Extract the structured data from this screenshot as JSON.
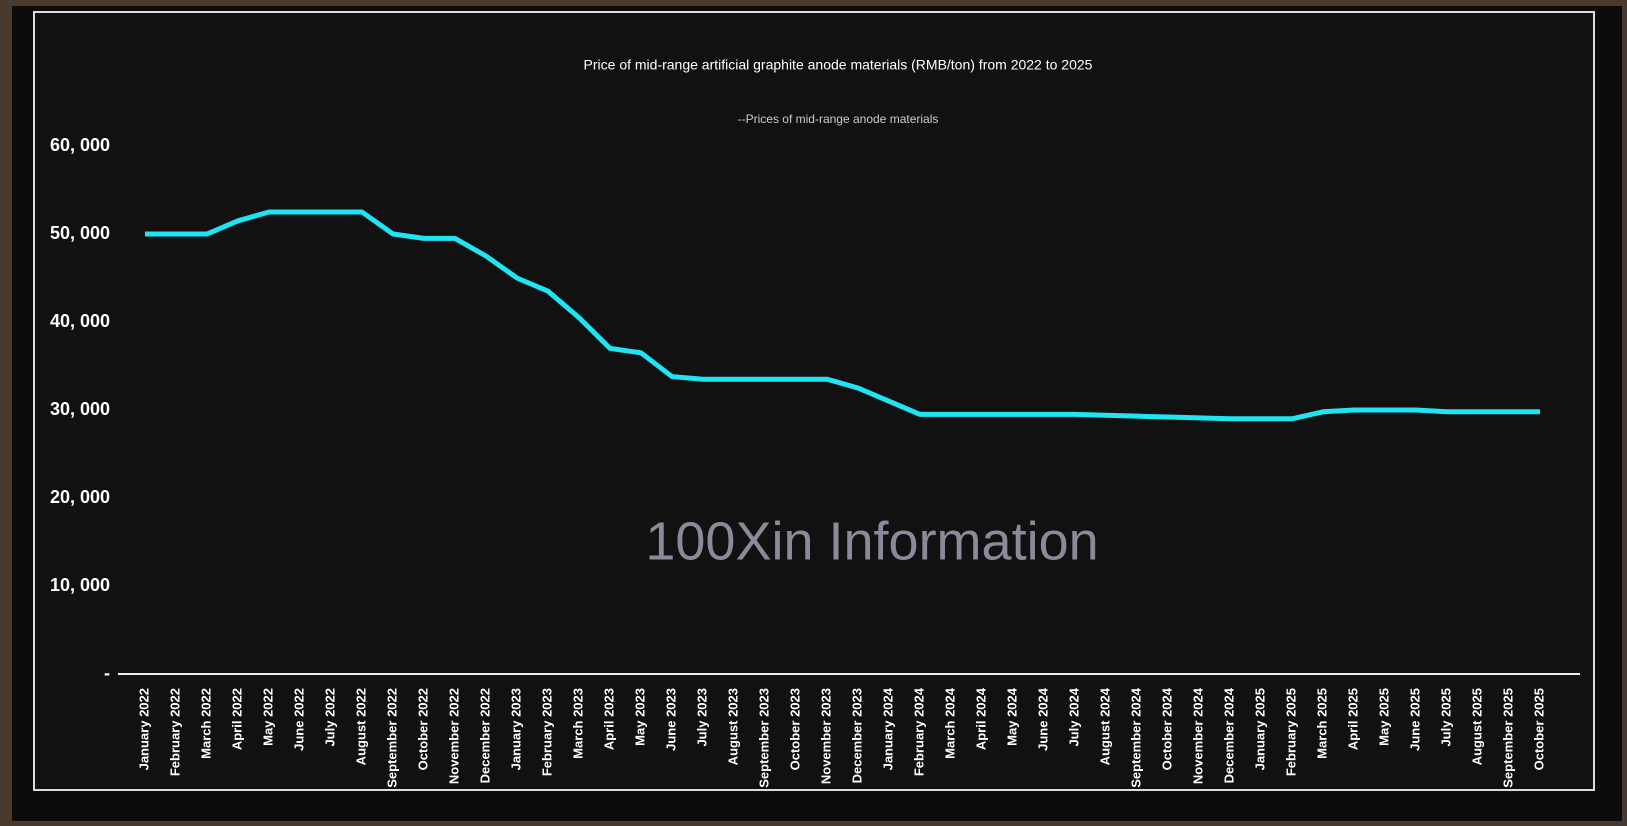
{
  "chart_data": {
    "type": "line",
    "title": "Price of mid-range artificial graphite anode materials (RMB/ton) from 2022 to 2025",
    "watermark": "100Xin Information",
    "categories": [
      "January 2022",
      "February 2022",
      "March 2022",
      "April 2022",
      "May 2022",
      "June 2022",
      "July 2022",
      "August 2022",
      "September 2022",
      "October 2022",
      "November 2022",
      "December 2022",
      "January 2023",
      "February 2023",
      "March 2023",
      "April 2023",
      "May 2023",
      "June 2023",
      "July 2023",
      "August 2023",
      "September 2023",
      "October 2023",
      "November 2023",
      "December 2023",
      "January 2024",
      "February 2024",
      "March 2024",
      "April 2024",
      "May 2024",
      "June 2024",
      "July 2024",
      "August 2024",
      "September 2024",
      "October 2024",
      "November 2024",
      "December 2024",
      "January 2025",
      "February 2025",
      "March 2025",
      "April 2025",
      "May 2025",
      "June 2025",
      "July 2025",
      "August 2025",
      "September 2025",
      "October 2025"
    ],
    "series": [
      {
        "name": "--Prices of mid-range anode materials",
        "color": "#1fe4f2",
        "values": [
          50000,
          50000,
          50000,
          51500,
          52500,
          52500,
          52500,
          52500,
          50000,
          49500,
          49500,
          47500,
          45000,
          43500,
          40500,
          37000,
          36500,
          33800,
          33500,
          33500,
          33500,
          33500,
          33500,
          32500,
          31000,
          29500,
          29500,
          29500,
          29500,
          29500,
          29500,
          29400,
          29300,
          29200,
          29100,
          29000,
          29000,
          29000,
          29800,
          30000,
          30000,
          30000,
          29800,
          29800,
          29800,
          29800
        ]
      }
    ],
    "ylim": [
      0,
      60000
    ],
    "yticks": [
      {
        "value": 0,
        "label": "-"
      },
      {
        "value": 10000,
        "label": "10, 000"
      },
      {
        "value": 20000,
        "label": "20, 000"
      },
      {
        "value": 30000,
        "label": "30, 000"
      },
      {
        "value": 40000,
        "label": "40, 000"
      },
      {
        "value": 50000,
        "label": "50, 000"
      },
      {
        "value": 60000,
        "label": "60, 000"
      }
    ],
    "grid": false
  }
}
